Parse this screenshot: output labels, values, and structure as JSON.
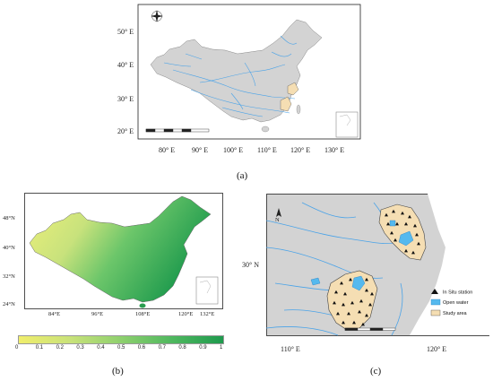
{
  "panel_a": {
    "caption": "(a)",
    "lat_labels": [
      "50° E",
      "40° E",
      "30° E",
      "20° E"
    ],
    "lon_labels": [
      "80° E",
      "90° E",
      "100° E",
      "110° E",
      "120° E",
      "130° E"
    ],
    "north_arrow": "N"
  },
  "panel_b": {
    "caption": "(b)",
    "lat_labels": [
      "48°N",
      "40°N",
      "32°N",
      "24°N"
    ],
    "lon_labels": [
      "84°E",
      "96°E",
      "108°E",
      "120°E",
      "132°E"
    ],
    "colorbar_labels": [
      "0",
      "0.1",
      "0.2",
      "0.3",
      "0.4",
      "0.5",
      "0.6",
      "0.7",
      "0.8",
      "0.9",
      "1"
    ],
    "colorbar_colors": [
      "#f0ee6c",
      "#1e9a4d"
    ]
  },
  "panel_c": {
    "caption": "(c)",
    "lat_label": "30° N",
    "lon_labels": [
      "110° E",
      "120° E"
    ],
    "north_arrow": "N",
    "legend": {
      "station": "In Situ station",
      "water": "Open water",
      "study": "Study area"
    },
    "colors": {
      "water": "#55b9ee",
      "study": "#f5deb3",
      "land": "#d3d3d3"
    }
  }
}
